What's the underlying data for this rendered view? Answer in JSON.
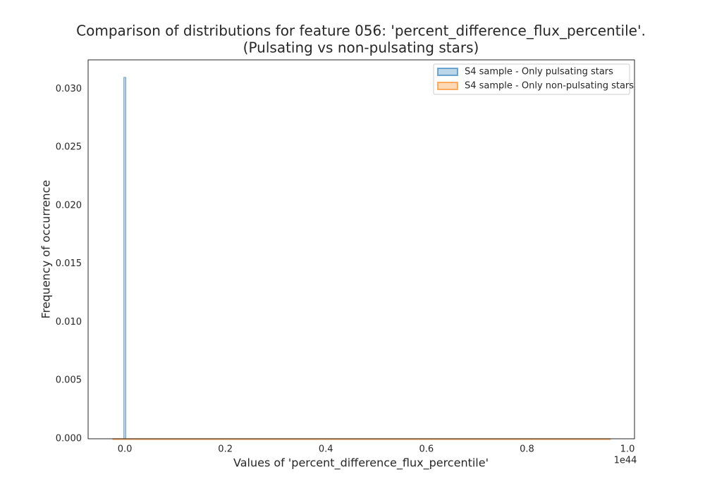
{
  "chart_data": {
    "type": "histogram",
    "title": [
      "Comparison of distributions for feature 056: 'percent_difference_flux_percentile'.",
      "(Pulsating vs non-pulsating stars)"
    ],
    "x_label": "Values of 'percent_difference_flux_percentile'",
    "x_offset_label": "1e44",
    "y_label": "Frequency of occurrence",
    "series": [
      {
        "name": "S4 sample - Only pulsating stars",
        "color": "#1f77b4",
        "bins": [
          -0.002,
          0.002
        ],
        "values": [
          0.031
        ]
      },
      {
        "name": "S4 sample - Only non-pulsating stars",
        "color": "#ff7f0e",
        "bins": [
          -0.024,
          0.966
        ],
        "values": [
          2e-05
        ]
      }
    ],
    "xlim": [
      -0.073,
      1.014
    ],
    "xticks": [
      {
        "value": 0,
        "label": "0.0"
      },
      0.2,
      0.4,
      0.6,
      0.8,
      {
        "value": 1,
        "label": "1.0"
      }
    ],
    "ylim": [
      0,
      0.0325
    ],
    "yticks": [
      {
        "value": 0,
        "label": "0.000"
      },
      {
        "value": 0.005,
        "label": "0.005"
      },
      {
        "value": 0.01,
        "label": "0.010"
      },
      {
        "value": 0.015,
        "label": "0.015"
      },
      {
        "value": 0.02,
        "label": "0.020"
      },
      {
        "value": 0.025,
        "label": "0.025"
      },
      {
        "value": 0.03,
        "label": "0.030"
      }
    ],
    "legend": "upper right"
  }
}
